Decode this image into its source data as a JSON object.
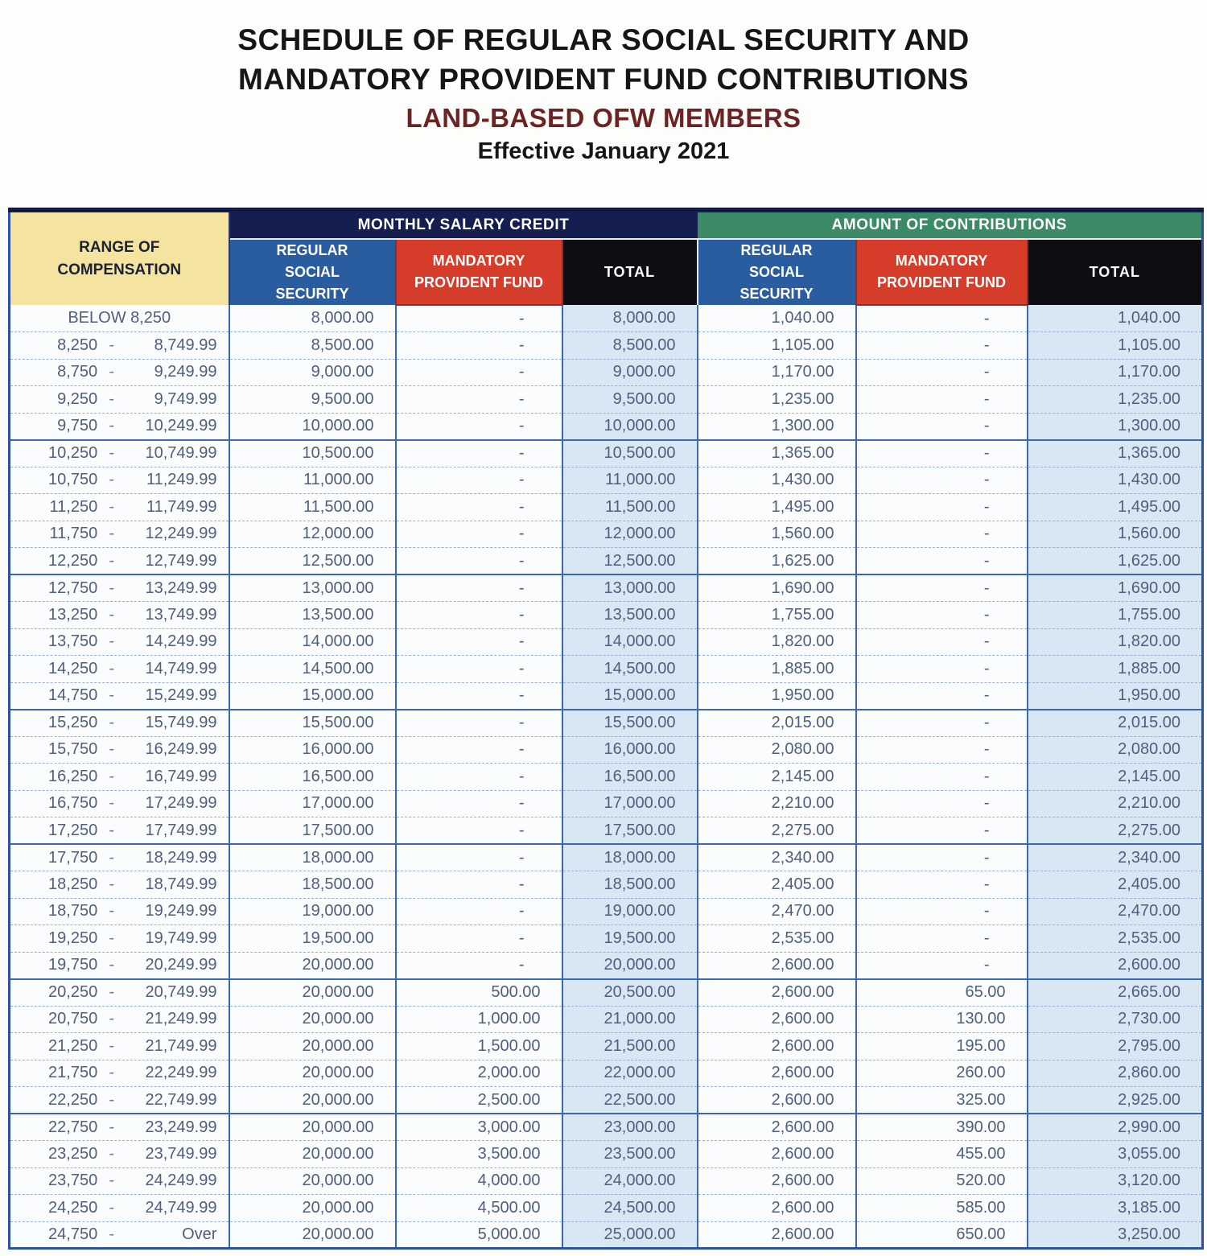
{
  "title": {
    "line1": "SCHEDULE OF REGULAR SOCIAL SECURITY AND",
    "line2": "MANDATORY PROVIDENT FUND CONTRIBUTIONS",
    "line3": "LAND-BASED OFW MEMBERS",
    "line4": "Effective January 2021"
  },
  "colors": {
    "range_header_bg": "#f5e4a0",
    "msc_band_bg": "#141f4f",
    "aoc_band_bg": "#3c8a66",
    "regular_ss_header_bg": "#2a5ca0",
    "mpf_header_bg": "#d63c2a",
    "total_header_bg": "#0d0d12",
    "total_column_bg": "#d9e6f4",
    "grid_border": "#3a67b1",
    "data_text": "#4f5e7e",
    "subtitle_text": "#6b2423"
  },
  "table": {
    "header": {
      "range": "RANGE OF COMPENSATION",
      "msc": "MONTHLY SALARY CREDIT",
      "aoc": "AMOUNT OF CONTRIBUTIONS",
      "sub_ss": "REGULAR SOCIAL SECURITY",
      "sub_mpf": "MANDATORY PROVIDENT FUND",
      "sub_total": "TOTAL"
    },
    "range_separator": "-",
    "rows": [
      {
        "label": "BELOW 8,250",
        "msc_ss": "8,000.00",
        "msc_mpf": "-",
        "msc_total": "8,000.00",
        "amt_ss": "1,040.00",
        "amt_mpf": "-",
        "amt_total": "1,040.00"
      },
      {
        "low": "8,250",
        "high": "8,749.99",
        "msc_ss": "8,500.00",
        "msc_mpf": "-",
        "msc_total": "8,500.00",
        "amt_ss": "1,105.00",
        "amt_mpf": "-",
        "amt_total": "1,105.00"
      },
      {
        "low": "8,750",
        "high": "9,249.99",
        "msc_ss": "9,000.00",
        "msc_mpf": "-",
        "msc_total": "9,000.00",
        "amt_ss": "1,170.00",
        "amt_mpf": "-",
        "amt_total": "1,170.00"
      },
      {
        "low": "9,250",
        "high": "9,749.99",
        "msc_ss": "9,500.00",
        "msc_mpf": "-",
        "msc_total": "9,500.00",
        "amt_ss": "1,235.00",
        "amt_mpf": "-",
        "amt_total": "1,235.00"
      },
      {
        "low": "9,750",
        "high": "10,249.99",
        "msc_ss": "10,000.00",
        "msc_mpf": "-",
        "msc_total": "10,000.00",
        "amt_ss": "1,300.00",
        "amt_mpf": "-",
        "amt_total": "1,300.00"
      },
      {
        "low": "10,250",
        "high": "10,749.99",
        "msc_ss": "10,500.00",
        "msc_mpf": "-",
        "msc_total": "10,500.00",
        "amt_ss": "1,365.00",
        "amt_mpf": "-",
        "amt_total": "1,365.00"
      },
      {
        "low": "10,750",
        "high": "11,249.99",
        "msc_ss": "11,000.00",
        "msc_mpf": "-",
        "msc_total": "11,000.00",
        "amt_ss": "1,430.00",
        "amt_mpf": "-",
        "amt_total": "1,430.00"
      },
      {
        "low": "11,250",
        "high": "11,749.99",
        "msc_ss": "11,500.00",
        "msc_mpf": "-",
        "msc_total": "11,500.00",
        "amt_ss": "1,495.00",
        "amt_mpf": "-",
        "amt_total": "1,495.00"
      },
      {
        "low": "11,750",
        "high": "12,249.99",
        "msc_ss": "12,000.00",
        "msc_mpf": "-",
        "msc_total": "12,000.00",
        "amt_ss": "1,560.00",
        "amt_mpf": "-",
        "amt_total": "1,560.00"
      },
      {
        "low": "12,250",
        "high": "12,749.99",
        "msc_ss": "12,500.00",
        "msc_mpf": "-",
        "msc_total": "12,500.00",
        "amt_ss": "1,625.00",
        "amt_mpf": "-",
        "amt_total": "1,625.00"
      },
      {
        "low": "12,750",
        "high": "13,249.99",
        "msc_ss": "13,000.00",
        "msc_mpf": "-",
        "msc_total": "13,000.00",
        "amt_ss": "1,690.00",
        "amt_mpf": "-",
        "amt_total": "1,690.00"
      },
      {
        "low": "13,250",
        "high": "13,749.99",
        "msc_ss": "13,500.00",
        "msc_mpf": "-",
        "msc_total": "13,500.00",
        "amt_ss": "1,755.00",
        "amt_mpf": "-",
        "amt_total": "1,755.00"
      },
      {
        "low": "13,750",
        "high": "14,249.99",
        "msc_ss": "14,000.00",
        "msc_mpf": "-",
        "msc_total": "14,000.00",
        "amt_ss": "1,820.00",
        "amt_mpf": "-",
        "amt_total": "1,820.00"
      },
      {
        "low": "14,250",
        "high": "14,749.99",
        "msc_ss": "14,500.00",
        "msc_mpf": "-",
        "msc_total": "14,500.00",
        "amt_ss": "1,885.00",
        "amt_mpf": "-",
        "amt_total": "1,885.00"
      },
      {
        "low": "14,750",
        "high": "15,249.99",
        "msc_ss": "15,000.00",
        "msc_mpf": "-",
        "msc_total": "15,000.00",
        "amt_ss": "1,950.00",
        "amt_mpf": "-",
        "amt_total": "1,950.00"
      },
      {
        "low": "15,250",
        "high": "15,749.99",
        "msc_ss": "15,500.00",
        "msc_mpf": "-",
        "msc_total": "15,500.00",
        "amt_ss": "2,015.00",
        "amt_mpf": "-",
        "amt_total": "2,015.00"
      },
      {
        "low": "15,750",
        "high": "16,249.99",
        "msc_ss": "16,000.00",
        "msc_mpf": "-",
        "msc_total": "16,000.00",
        "amt_ss": "2,080.00",
        "amt_mpf": "-",
        "amt_total": "2,080.00"
      },
      {
        "low": "16,250",
        "high": "16,749.99",
        "msc_ss": "16,500.00",
        "msc_mpf": "-",
        "msc_total": "16,500.00",
        "amt_ss": "2,145.00",
        "amt_mpf": "-",
        "amt_total": "2,145.00"
      },
      {
        "low": "16,750",
        "high": "17,249.99",
        "msc_ss": "17,000.00",
        "msc_mpf": "-",
        "msc_total": "17,000.00",
        "amt_ss": "2,210.00",
        "amt_mpf": "-",
        "amt_total": "2,210.00"
      },
      {
        "low": "17,250",
        "high": "17,749.99",
        "msc_ss": "17,500.00",
        "msc_mpf": "-",
        "msc_total": "17,500.00",
        "amt_ss": "2,275.00",
        "amt_mpf": "-",
        "amt_total": "2,275.00"
      },
      {
        "low": "17,750",
        "high": "18,249.99",
        "msc_ss": "18,000.00",
        "msc_mpf": "-",
        "msc_total": "18,000.00",
        "amt_ss": "2,340.00",
        "amt_mpf": "-",
        "amt_total": "2,340.00"
      },
      {
        "low": "18,250",
        "high": "18,749.99",
        "msc_ss": "18,500.00",
        "msc_mpf": "-",
        "msc_total": "18,500.00",
        "amt_ss": "2,405.00",
        "amt_mpf": "-",
        "amt_total": "2,405.00"
      },
      {
        "low": "18,750",
        "high": "19,249.99",
        "msc_ss": "19,000.00",
        "msc_mpf": "-",
        "msc_total": "19,000.00",
        "amt_ss": "2,470.00",
        "amt_mpf": "-",
        "amt_total": "2,470.00"
      },
      {
        "low": "19,250",
        "high": "19,749.99",
        "msc_ss": "19,500.00",
        "msc_mpf": "-",
        "msc_total": "19,500.00",
        "amt_ss": "2,535.00",
        "amt_mpf": "-",
        "amt_total": "2,535.00"
      },
      {
        "low": "19,750",
        "high": "20,249.99",
        "msc_ss": "20,000.00",
        "msc_mpf": "-",
        "msc_total": "20,000.00",
        "amt_ss": "2,600.00",
        "amt_mpf": "-",
        "amt_total": "2,600.00"
      },
      {
        "low": "20,250",
        "high": "20,749.99",
        "msc_ss": "20,000.00",
        "msc_mpf": "500.00",
        "msc_total": "20,500.00",
        "amt_ss": "2,600.00",
        "amt_mpf": "65.00",
        "amt_total": "2,665.00"
      },
      {
        "low": "20,750",
        "high": "21,249.99",
        "msc_ss": "20,000.00",
        "msc_mpf": "1,000.00",
        "msc_total": "21,000.00",
        "amt_ss": "2,600.00",
        "amt_mpf": "130.00",
        "amt_total": "2,730.00"
      },
      {
        "low": "21,250",
        "high": "21,749.99",
        "msc_ss": "20,000.00",
        "msc_mpf": "1,500.00",
        "msc_total": "21,500.00",
        "amt_ss": "2,600.00",
        "amt_mpf": "195.00",
        "amt_total": "2,795.00"
      },
      {
        "low": "21,750",
        "high": "22,249.99",
        "msc_ss": "20,000.00",
        "msc_mpf": "2,000.00",
        "msc_total": "22,000.00",
        "amt_ss": "2,600.00",
        "amt_mpf": "260.00",
        "amt_total": "2,860.00"
      },
      {
        "low": "22,250",
        "high": "22,749.99",
        "msc_ss": "20,000.00",
        "msc_mpf": "2,500.00",
        "msc_total": "22,500.00",
        "amt_ss": "2,600.00",
        "amt_mpf": "325.00",
        "amt_total": "2,925.00"
      },
      {
        "low": "22,750",
        "high": "23,249.99",
        "msc_ss": "20,000.00",
        "msc_mpf": "3,000.00",
        "msc_total": "23,000.00",
        "amt_ss": "2,600.00",
        "amt_mpf": "390.00",
        "amt_total": "2,990.00"
      },
      {
        "low": "23,250",
        "high": "23,749.99",
        "msc_ss": "20,000.00",
        "msc_mpf": "3,500.00",
        "msc_total": "23,500.00",
        "amt_ss": "2,600.00",
        "amt_mpf": "455.00",
        "amt_total": "3,055.00"
      },
      {
        "low": "23,750",
        "high": "24,249.99",
        "msc_ss": "20,000.00",
        "msc_mpf": "4,000.00",
        "msc_total": "24,000.00",
        "amt_ss": "2,600.00",
        "amt_mpf": "520.00",
        "amt_total": "3,120.00"
      },
      {
        "low": "24,250",
        "high": "24,749.99",
        "msc_ss": "20,000.00",
        "msc_mpf": "4,500.00",
        "msc_total": "24,500.00",
        "amt_ss": "2,600.00",
        "amt_mpf": "585.00",
        "amt_total": "3,185.00"
      },
      {
        "low": "24,750",
        "high": "Over",
        "msc_ss": "20,000.00",
        "msc_mpf": "5,000.00",
        "msc_total": "25,000.00",
        "amt_ss": "2,600.00",
        "amt_mpf": "650.00",
        "amt_total": "3,250.00"
      }
    ]
  }
}
